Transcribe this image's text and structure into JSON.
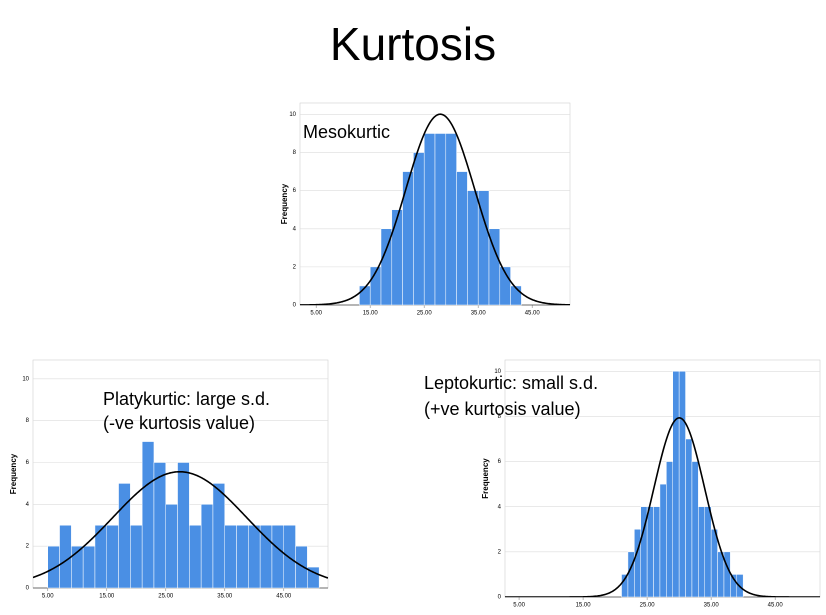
{
  "title": "Kurtosis",
  "chart_data": [
    {
      "type": "histogram",
      "ylabel": "Frequency",
      "annotations": [
        "Mesokurtic"
      ],
      "bins": [
        13,
        15,
        17,
        19,
        21,
        23,
        25,
        27,
        29,
        31,
        33,
        35,
        37,
        39,
        41,
        43
      ],
      "counts": [
        1,
        2,
        4,
        5,
        7,
        8,
        9,
        9,
        9,
        7,
        6,
        6,
        4,
        2,
        1
      ],
      "color": "#4a8fe4",
      "normal_curve": true,
      "grid": true,
      "xlim": [
        2,
        52
      ],
      "ylim": [
        0,
        10.6
      ],
      "xticks": [
        {
          "value": 5,
          "label": "5.00"
        },
        {
          "value": 15,
          "label": "15.00"
        },
        {
          "value": 25,
          "label": "25.00"
        },
        {
          "value": 35,
          "label": "35.00"
        },
        {
          "value": 45,
          "label": "45.00"
        }
      ],
      "yticks": [
        0,
        2,
        4,
        6,
        8,
        10
      ]
    },
    {
      "type": "histogram",
      "ylabel": "Frequency",
      "annotations": [
        "Platykurtic: large s.d.",
        "(-ve kurtosis value)"
      ],
      "bins": [
        5,
        7,
        9,
        11,
        13,
        15,
        17,
        19,
        21,
        23,
        25,
        27,
        29,
        31,
        33,
        35,
        37,
        39,
        41,
        43,
        45,
        47,
        49,
        51
      ],
      "counts": [
        2,
        3,
        2,
        2,
        3,
        3,
        5,
        3,
        7,
        6,
        4,
        6,
        3,
        4,
        5,
        3,
        3,
        3,
        3,
        3,
        3,
        2,
        1
      ],
      "color": "#4a8fe4",
      "normal_curve": true,
      "grid": true,
      "xlim": [
        2.5,
        52.5
      ],
      "ylim": [
        0,
        10.9
      ],
      "xticks": [
        {
          "value": 5,
          "label": "5.00"
        },
        {
          "value": 15,
          "label": "15.00"
        },
        {
          "value": 25,
          "label": "25.00"
        },
        {
          "value": 35,
          "label": "35.00"
        },
        {
          "value": 45,
          "label": "45.00"
        }
      ],
      "yticks": [
        0,
        2,
        4,
        6,
        8,
        10
      ]
    },
    {
      "type": "histogram",
      "ylabel": "Frequency",
      "annotations": [
        "Leptokurtic: small s.d.",
        "(+ve kurtosis value)"
      ],
      "bins": [
        21,
        22,
        23,
        24,
        25,
        26,
        27,
        28,
        29,
        30,
        31,
        32,
        33,
        34,
        35,
        36,
        37,
        38,
        39,
        40
      ],
      "counts": [
        1,
        2,
        3,
        4,
        4,
        4,
        5,
        6,
        10,
        10,
        7,
        6,
        4,
        4,
        3,
        2,
        2,
        1,
        1
      ],
      "color": "#4a8fe4",
      "normal_curve": true,
      "grid": true,
      "xlim": [
        2.8,
        52
      ],
      "ylim": [
        0,
        10.5
      ],
      "xticks": [
        {
          "value": 5,
          "label": "5.00"
        },
        {
          "value": 15,
          "label": "15.00"
        },
        {
          "value": 25,
          "label": "25.00"
        },
        {
          "value": 35,
          "label": "35.00"
        },
        {
          "value": 45,
          "label": "45.00"
        }
      ],
      "yticks": [
        0,
        2,
        4,
        6,
        8,
        10
      ]
    }
  ]
}
